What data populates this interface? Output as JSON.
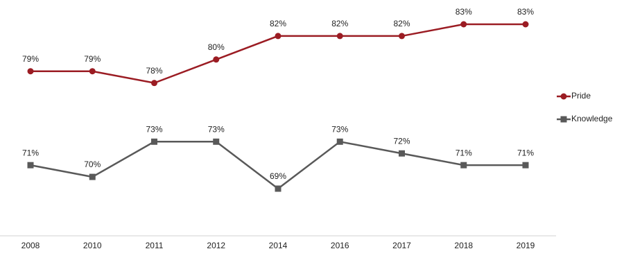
{
  "chart_data": {
    "type": "line",
    "categories": [
      "2008",
      "2010",
      "2011",
      "2012",
      "2014",
      "2016",
      "2017",
      "2018",
      "2019"
    ],
    "series": [
      {
        "name": "Pride",
        "color": "#9b1c23",
        "marker": "circle",
        "values": [
          79,
          79,
          78,
          80,
          82,
          82,
          82,
          83,
          83
        ],
        "value_labels": [
          "79%",
          "79%",
          "78%",
          "80%",
          "82%",
          "82%",
          "82%",
          "83%",
          "83%"
        ]
      },
      {
        "name": "Knowledge",
        "color": "#595959",
        "marker": "square",
        "values": [
          71,
          70,
          73,
          73,
          69,
          73,
          72,
          71,
          71
        ],
        "value_labels": [
          "71%",
          "70%",
          "73%",
          "73%",
          "69%",
          "73%",
          "72%",
          "71%",
          "71%"
        ]
      }
    ],
    "legend": "right"
  }
}
